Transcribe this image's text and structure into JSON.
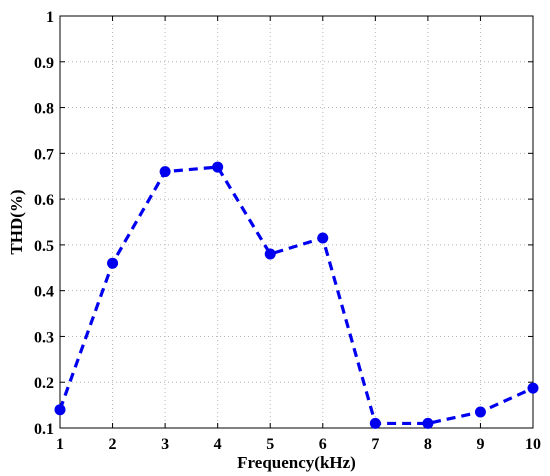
{
  "chart_data": {
    "type": "line",
    "title": "",
    "xlabel": "Frequency(kHz)",
    "ylabel": "THD(%)",
    "xlim": [
      1,
      10
    ],
    "ylim": [
      0.1,
      1
    ],
    "x_ticks": [
      "1",
      "2",
      "3",
      "4",
      "5",
      "6",
      "7",
      "8",
      "9",
      "10"
    ],
    "y_ticks": [
      "0.1",
      "0.2",
      "0.3",
      "0.4",
      "0.5",
      "0.6",
      "0.7",
      "0.8",
      "0.9",
      "1"
    ],
    "grid": true,
    "series": [
      {
        "x": [
          1,
          2,
          3,
          4,
          5,
          6,
          7,
          8,
          9,
          10
        ],
        "values": [
          0.14,
          0.46,
          0.66,
          0.67,
          0.48,
          0.515,
          0.11,
          0.11,
          0.135,
          0.187
        ],
        "color": "#0000ee",
        "line_style": "dashed",
        "marker": "circle"
      }
    ]
  }
}
